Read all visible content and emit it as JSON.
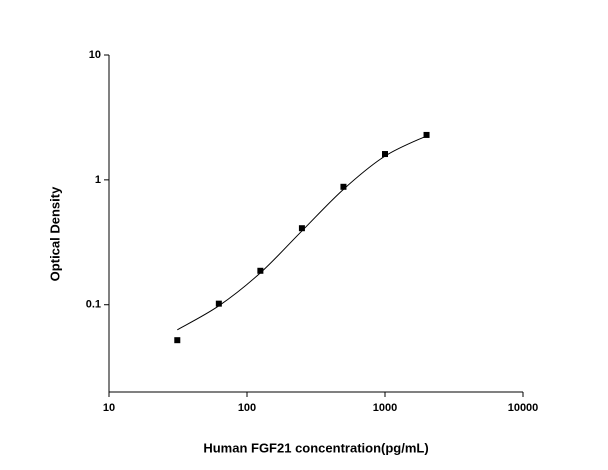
{
  "chart_data": {
    "type": "scatter",
    "x_label": "Human FGF21 concentration(pg/mL)",
    "y_label": "Optical Density",
    "xlog": true,
    "ylog": true,
    "xlim": [
      10,
      10000
    ],
    "xticks": [
      10,
      100,
      1000,
      10000
    ],
    "ylim": [
      0.02,
      10
    ],
    "yticks": [
      0.1,
      1,
      10
    ],
    "series": [
      {
        "mode": "markers",
        "marker": "square",
        "color": "#000000",
        "x": [
          31.25,
          62.5,
          125,
          250,
          500,
          1000,
          2000
        ],
        "values": [
          0.052,
          0.102,
          0.187,
          0.41,
          0.88,
          1.61,
          2.29
        ]
      },
      {
        "mode": "line",
        "color": "#000000",
        "x": [
          31.25,
          62.5,
          125,
          250,
          500,
          1000,
          2000
        ],
        "values": [
          0.063,
          0.098,
          0.18,
          0.39,
          0.84,
          1.55,
          2.25
        ]
      }
    ]
  }
}
